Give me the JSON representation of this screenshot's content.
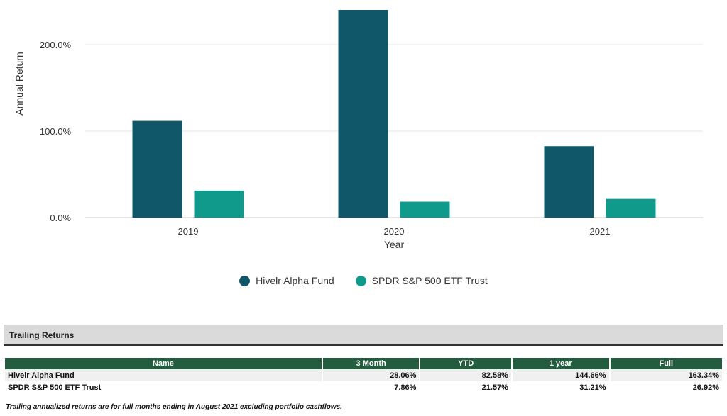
{
  "chart_data": {
    "type": "bar",
    "categories": [
      "2019",
      "2020",
      "2021"
    ],
    "series": [
      {
        "name": "Hivelr Alpha Fund",
        "values": [
          111.8,
          240.7,
          82.6
        ],
        "color": "#10576a"
      },
      {
        "name": "SPDR S&P 500 ETF Trust",
        "values": [
          31.2,
          18.4,
          21.6
        ],
        "color": "#0f9a8c"
      }
    ],
    "xlabel": "Year",
    "ylabel": "Annual Return",
    "ylim": [
      0,
      240
    ],
    "yticks": [
      {
        "value": 0,
        "label": "0.0%"
      },
      {
        "value": 100,
        "label": "100.0%"
      },
      {
        "value": 200,
        "label": "200.0%"
      }
    ],
    "grid": true,
    "legend": "bottom-center"
  },
  "trailing": {
    "title": "Trailing Returns",
    "headers": [
      "Name",
      "3 Month",
      "YTD",
      "1 year",
      "Full"
    ],
    "rows": [
      [
        "Hivelr Alpha Fund",
        "28.06%",
        "82.58%",
        "144.66%",
        "163.34%"
      ],
      [
        "SPDR S&P 500 ETF Trust",
        "7.86%",
        "21.57%",
        "31.21%",
        "26.92%"
      ]
    ],
    "footnote": "Trailing annualized returns are for full months ending in August 2021 excluding portfolio cashflows."
  }
}
